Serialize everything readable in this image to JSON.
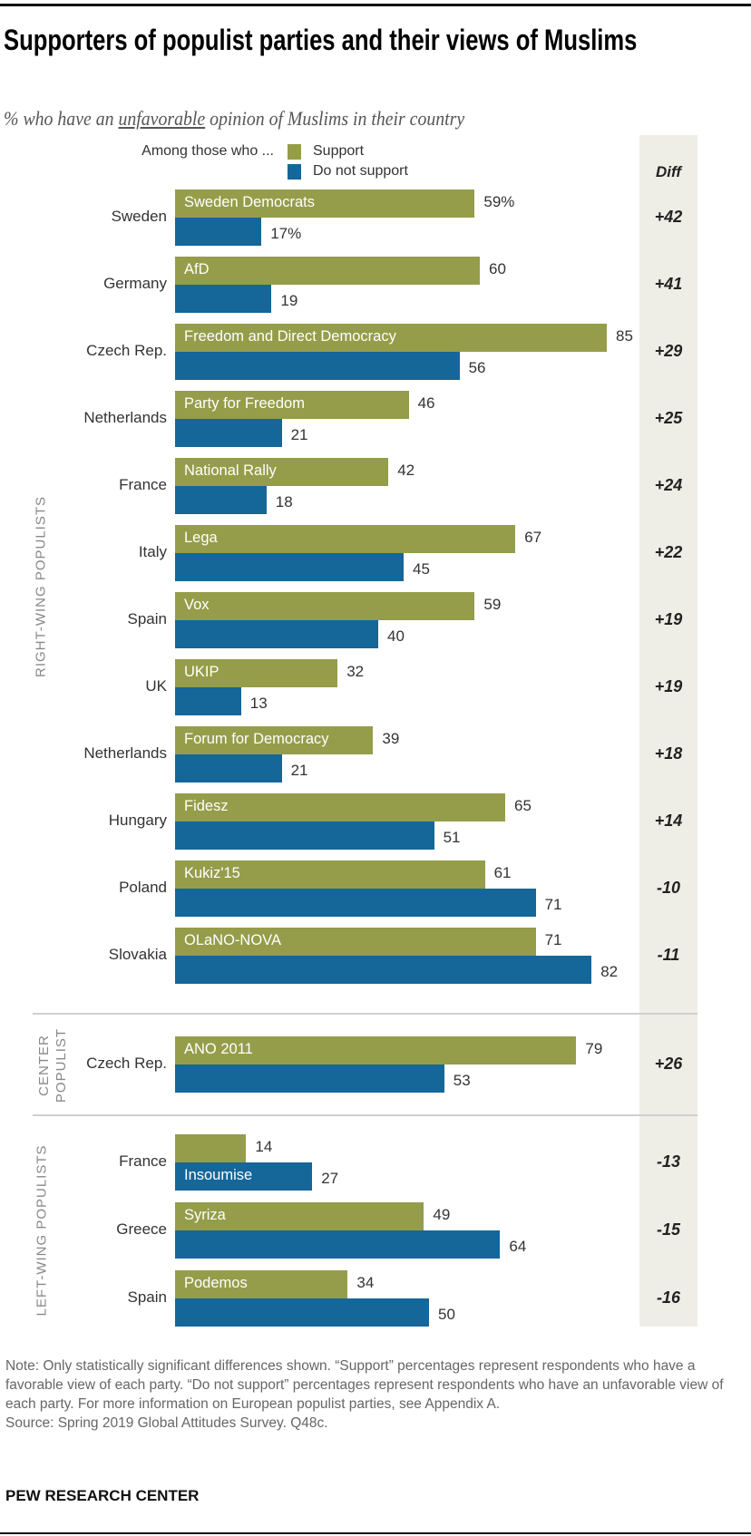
{
  "title": "Supporters of populist parties and their views of Muslims",
  "subtitle": {
    "pre": "% who have an ",
    "underlined": "unfavorable",
    "post": " opinion of Muslims in their country"
  },
  "legend": {
    "intro": "Among those who ...",
    "support": "Support",
    "not_support": "Do not support"
  },
  "diff_header": "Diff",
  "colors": {
    "support": "#959d4a",
    "not_support": "#156699",
    "diff_bg": "#efeee6"
  },
  "chart_data": {
    "type": "bar",
    "orientation": "horizontal",
    "series": [
      {
        "name": "Support"
      },
      {
        "name": "Do not support"
      }
    ],
    "groups": [
      {
        "label": "RIGHT-WING POPULISTS",
        "rows": [
          {
            "country": "Sweden",
            "party": "Sweden Democrats",
            "support": 59,
            "not_support": 17,
            "support_label": "59%",
            "not_support_label": "17%",
            "diff": "+42"
          },
          {
            "country": "Germany",
            "party": "AfD",
            "support": 60,
            "not_support": 19,
            "support_label": "60",
            "not_support_label": "19",
            "diff": "+41"
          },
          {
            "country": "Czech Rep.",
            "party": "Freedom and Direct Democracy",
            "support": 85,
            "not_support": 56,
            "support_label": "85",
            "not_support_label": "56",
            "diff": "+29"
          },
          {
            "country": "Netherlands",
            "party": "Party for Freedom",
            "support": 46,
            "not_support": 21,
            "support_label": "46",
            "not_support_label": "21",
            "diff": "+25"
          },
          {
            "country": "France",
            "party": "National Rally",
            "support": 42,
            "not_support": 18,
            "support_label": "42",
            "not_support_label": "18",
            "diff": "+24"
          },
          {
            "country": "Italy",
            "party": "Lega",
            "support": 67,
            "not_support": 45,
            "support_label": "67",
            "not_support_label": "45",
            "diff": "+22"
          },
          {
            "country": "Spain",
            "party": "Vox",
            "support": 59,
            "not_support": 40,
            "support_label": "59",
            "not_support_label": "40",
            "diff": "+19"
          },
          {
            "country": "UK",
            "party": "UKIP",
            "support": 32,
            "not_support": 13,
            "support_label": "32",
            "not_support_label": "13",
            "diff": "+19"
          },
          {
            "country": "Netherlands",
            "party": "Forum for Democracy",
            "support": 39,
            "not_support": 21,
            "support_label": "39",
            "not_support_label": "21",
            "diff": "+18"
          },
          {
            "country": "Hungary",
            "party": "Fidesz",
            "support": 65,
            "not_support": 51,
            "support_label": "65",
            "not_support_label": "51",
            "diff": "+14"
          },
          {
            "country": "Poland",
            "party": "Kukiz'15",
            "support": 61,
            "not_support": 71,
            "support_label": "61",
            "not_support_label": "71",
            "diff": "-10"
          },
          {
            "country": "Slovakia",
            "party": "OLaNO-NOVA",
            "support": 71,
            "not_support": 82,
            "support_label": "71",
            "not_support_label": "82",
            "diff": "-11"
          }
        ]
      },
      {
        "label": "CENTER POPULIST",
        "rows": [
          {
            "country": "Czech Rep.",
            "party": "ANO 2011",
            "support": 79,
            "not_support": 53,
            "support_label": "79",
            "not_support_label": "53",
            "diff": "+26"
          }
        ]
      },
      {
        "label": "LEFT-WING POPULISTS",
        "rows": [
          {
            "country": "France",
            "party": "Insoumise",
            "party_in_not_support_bar": true,
            "support": 14,
            "not_support": 27,
            "support_label": "14",
            "not_support_label": "27",
            "diff": "-13"
          },
          {
            "country": "Greece",
            "party": "Syriza",
            "support": 49,
            "not_support": 64,
            "support_label": "49",
            "not_support_label": "64",
            "diff": "-15"
          },
          {
            "country": "Spain",
            "party": "Podemos",
            "support": 34,
            "not_support": 50,
            "support_label": "34",
            "not_support_label": "50",
            "diff": "-16"
          }
        ]
      }
    ],
    "xlim": [
      0,
      100
    ]
  },
  "note": "Note: Only statistically significant differences shown. “Support” percentages represent respondents who have a favorable view of each party. “Do not support” percentages represent respondents who have an unfavorable view of each party. For more information on European populist parties, see Appendix A.",
  "source": "Source: Spring 2019 Global Attitudes Survey. Q48c.",
  "brand": "PEW RESEARCH CENTER"
}
